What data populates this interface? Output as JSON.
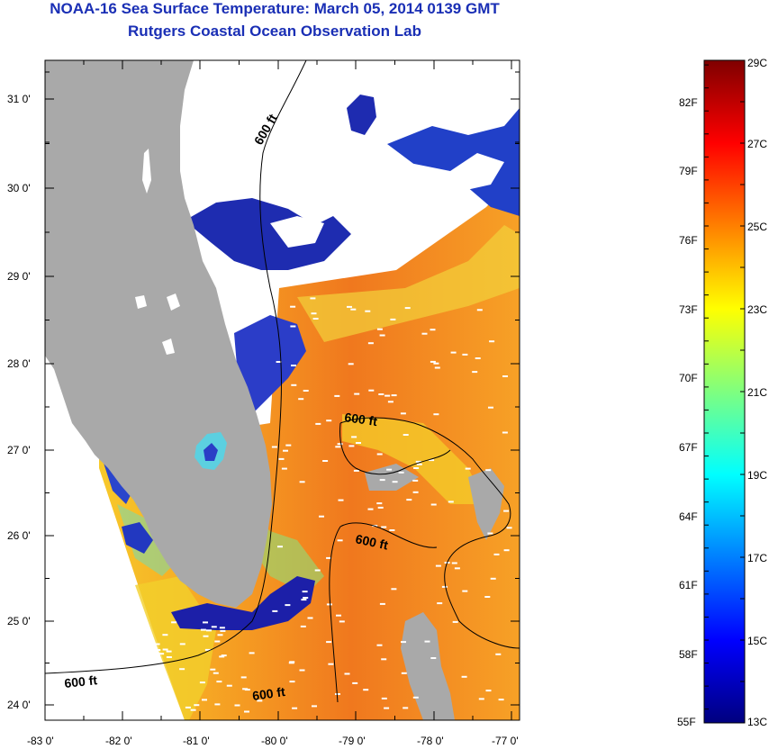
{
  "header": {
    "title": "NOAA-16 Sea Surface Temperature:  March 05, 2014 0139 GMT",
    "subtitle": "Rutgers Coastal Ocean Observation Lab"
  },
  "map": {
    "lat_labels": [
      "31 0'",
      "30 0'",
      "29 0'",
      "28 0'",
      "27 0'",
      "26 0'",
      "25 0'",
      "24 0'"
    ],
    "lon_labels": [
      "-83 0'",
      "-82 0'",
      "-81 0'",
      "-80 0'",
      "-79 0'",
      "-78 0'",
      "-77 0'"
    ],
    "contour_labels": [
      "600 ft",
      "600 ft",
      "600 ft",
      "600 ft",
      "600 ft"
    ],
    "colors": {
      "land": "#a9a9a9",
      "cloud": "#ffffff",
      "warm": "#f39a22",
      "mid": "#f5d321",
      "cold": "#1c1fa8"
    }
  },
  "colorbar": {
    "left_labels": [
      "82F",
      "79F",
      "76F",
      "73F",
      "70F",
      "67F",
      "64F",
      "61F",
      "58F",
      "55F"
    ],
    "right_labels": [
      "29C",
      "27C",
      "25C",
      "23C",
      "21C",
      "19C",
      "17C",
      "15C",
      "13C"
    ],
    "min_c": 13,
    "max_c": 29
  }
}
